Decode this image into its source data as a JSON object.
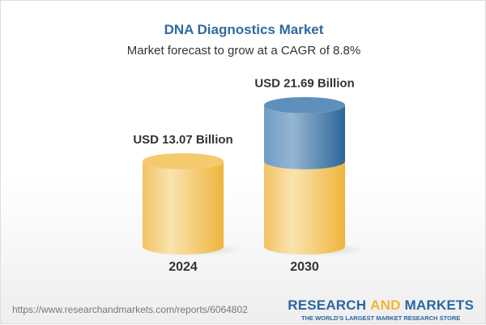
{
  "title": "DNA Diagnostics Market",
  "subtitle": "Market forecast to grow at a CAGR of 8.8%",
  "chart_data": {
    "type": "bar",
    "categories": [
      "2024",
      "2030"
    ],
    "values": [
      13.07,
      21.69
    ],
    "data_labels": [
      "USD 13.07 Billion",
      "USD 21.69 Billion"
    ],
    "unit": "USD Billion",
    "colors": {
      "base": "#f3c35c",
      "growth": "#4f86b5"
    }
  },
  "footer": {
    "url": "https://www.researchandmarkets.com/reports/6064802",
    "logo_part1": "RESEARCH ",
    "logo_part2": "AND",
    "logo_part3": " MARKETS",
    "tagline": "THE WORLD'S LARGEST MARKET RESEARCH STORE"
  }
}
